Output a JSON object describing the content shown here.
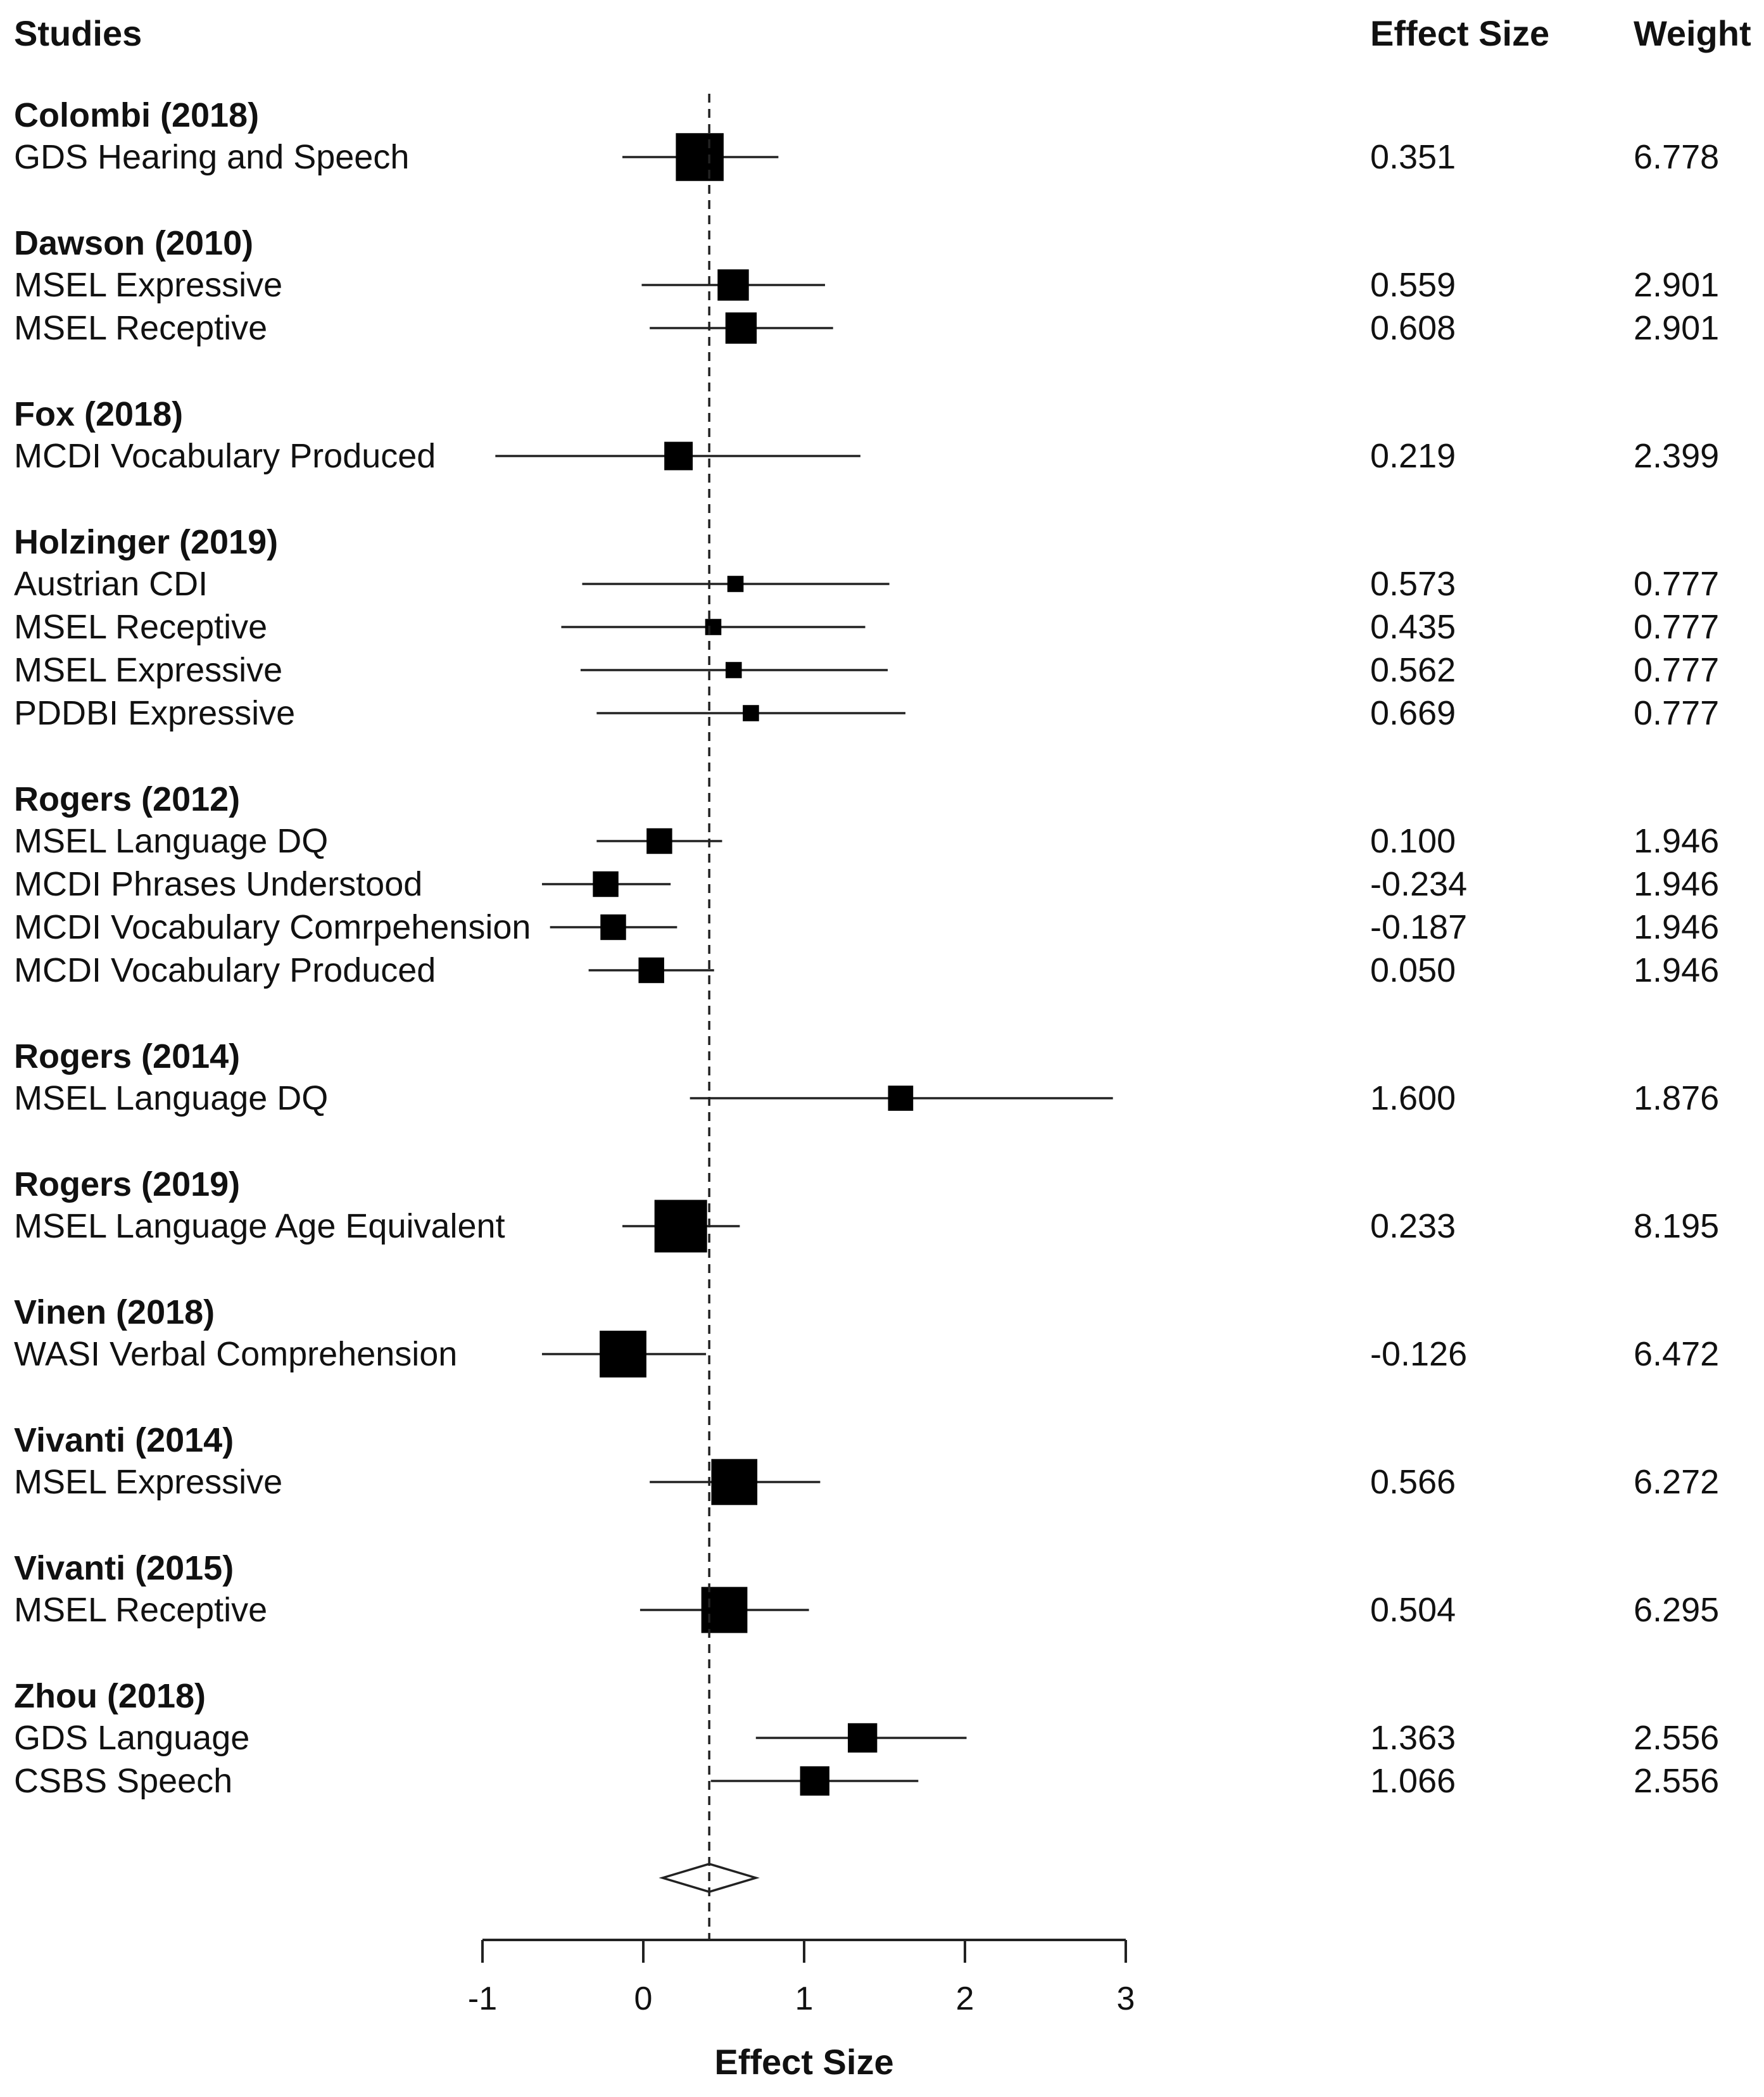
{
  "chart_data": {
    "type": "forest",
    "columns": {
      "studies": "Studies",
      "effect": "Effect Size",
      "weight": "Weight"
    },
    "xlabel": "Effect Size",
    "xlim": [
      -1,
      3
    ],
    "xticks": [
      "-1",
      "0",
      "1",
      "2",
      "3"
    ],
    "pooled_estimate": 0.41,
    "pooled_ci": [
      0.12,
      0.7
    ],
    "groups": [
      {
        "study": "Colombi (2018)",
        "rows": [
          {
            "label": "GDS Hearing and Speech",
            "effect": 0.351,
            "effect_text": "0.351",
            "weight": 6.778,
            "weight_text": "6.778",
            "ci": [
              -0.13,
              0.84
            ]
          }
        ]
      },
      {
        "study": "Dawson (2010)",
        "rows": [
          {
            "label": "MSEL Expressive",
            "effect": 0.559,
            "effect_text": "0.559",
            "weight": 2.901,
            "weight_text": "2.901",
            "ci": [
              -0.01,
              1.13
            ]
          },
          {
            "label": "MSEL Receptive",
            "effect": 0.608,
            "effect_text": "0.608",
            "weight": 2.901,
            "weight_text": "2.901",
            "ci": [
              0.04,
              1.18
            ]
          }
        ]
      },
      {
        "study": "Fox (2018)",
        "rows": [
          {
            "label": "MCDI Vocabulary Produced",
            "effect": 0.219,
            "effect_text": "0.219",
            "weight": 2.399,
            "weight_text": "2.399",
            "ci": [
              -0.92,
              1.35
            ]
          }
        ]
      },
      {
        "study": "Holzinger (2019)",
        "rows": [
          {
            "label": "Austrian CDI",
            "effect": 0.573,
            "effect_text": "0.573",
            "weight": 0.777,
            "weight_text": "0.777",
            "ci": [
              -0.38,
              1.53
            ]
          },
          {
            "label": "MSEL Receptive",
            "effect": 0.435,
            "effect_text": "0.435",
            "weight": 0.777,
            "weight_text": "0.777",
            "ci": [
              -0.51,
              1.38
            ]
          },
          {
            "label": "MSEL Expressive",
            "effect": 0.562,
            "effect_text": "0.562",
            "weight": 0.777,
            "weight_text": "0.777",
            "ci": [
              -0.39,
              1.52
            ]
          },
          {
            "label": "PDDBI Expressive",
            "effect": 0.669,
            "effect_text": "0.669",
            "weight": 0.777,
            "weight_text": "0.777",
            "ci": [
              -0.29,
              1.63
            ]
          }
        ]
      },
      {
        "study": "Rogers (2012)",
        "rows": [
          {
            "label": "MSEL Language DQ",
            "effect": 0.1,
            "effect_text": "0.100",
            "weight": 1.946,
            "weight_text": "1.946",
            "ci": [
              -0.29,
              0.49
            ]
          },
          {
            "label": "MCDI Phrases Understood",
            "effect": -0.234,
            "effect_text": "-0.234",
            "weight": 1.946,
            "weight_text": "1.946",
            "ci": [
              -0.63,
              0.17
            ]
          },
          {
            "label": "MCDI Vocabulary Comrpehension",
            "effect": -0.187,
            "effect_text": "-0.187",
            "weight": 1.946,
            "weight_text": "1.946",
            "ci": [
              -0.58,
              0.21
            ]
          },
          {
            "label": "MCDI Vocabulary Produced",
            "effect": 0.05,
            "effect_text": "0.050",
            "weight": 1.946,
            "weight_text": "1.946",
            "ci": [
              -0.34,
              0.44
            ]
          }
        ]
      },
      {
        "study": "Rogers (2014)",
        "rows": [
          {
            "label": "MSEL Language DQ",
            "effect": 1.6,
            "effect_text": "1.600",
            "weight": 1.876,
            "weight_text": "1.876",
            "ci": [
              0.29,
              2.92
            ]
          }
        ]
      },
      {
        "study": "Rogers (2019)",
        "rows": [
          {
            "label": "MSEL Language Age Equivalent",
            "effect": 0.233,
            "effect_text": "0.233",
            "weight": 8.195,
            "weight_text": "8.195",
            "ci": [
              -0.13,
              0.6
            ]
          }
        ]
      },
      {
        "study": "Vinen (2018)",
        "rows": [
          {
            "label": "WASI Verbal Comprehension",
            "effect": -0.126,
            "effect_text": "-0.126",
            "weight": 6.472,
            "weight_text": "6.472",
            "ci": [
              -0.63,
              0.39
            ]
          }
        ]
      },
      {
        "study": "Vivanti (2014)",
        "rows": [
          {
            "label": "MSEL Expressive",
            "effect": 0.566,
            "effect_text": "0.566",
            "weight": 6.272,
            "weight_text": "6.272",
            "ci": [
              0.04,
              1.1
            ]
          }
        ]
      },
      {
        "study": "Vivanti (2015)",
        "rows": [
          {
            "label": "MSEL Receptive",
            "effect": 0.504,
            "effect_text": "0.504",
            "weight": 6.295,
            "weight_text": "6.295",
            "ci": [
              -0.02,
              1.03
            ]
          }
        ]
      },
      {
        "study": "Zhou (2018)",
        "rows": [
          {
            "label": "GDS Language",
            "effect": 1.363,
            "effect_text": "1.363",
            "weight": 2.556,
            "weight_text": "2.556",
            "ci": [
              0.7,
              2.01
            ]
          },
          {
            "label": "CSBS Speech",
            "effect": 1.066,
            "effect_text": "1.066",
            "weight": 2.556,
            "weight_text": "2.556",
            "ci": [
              0.42,
              1.71
            ]
          }
        ]
      }
    ]
  }
}
